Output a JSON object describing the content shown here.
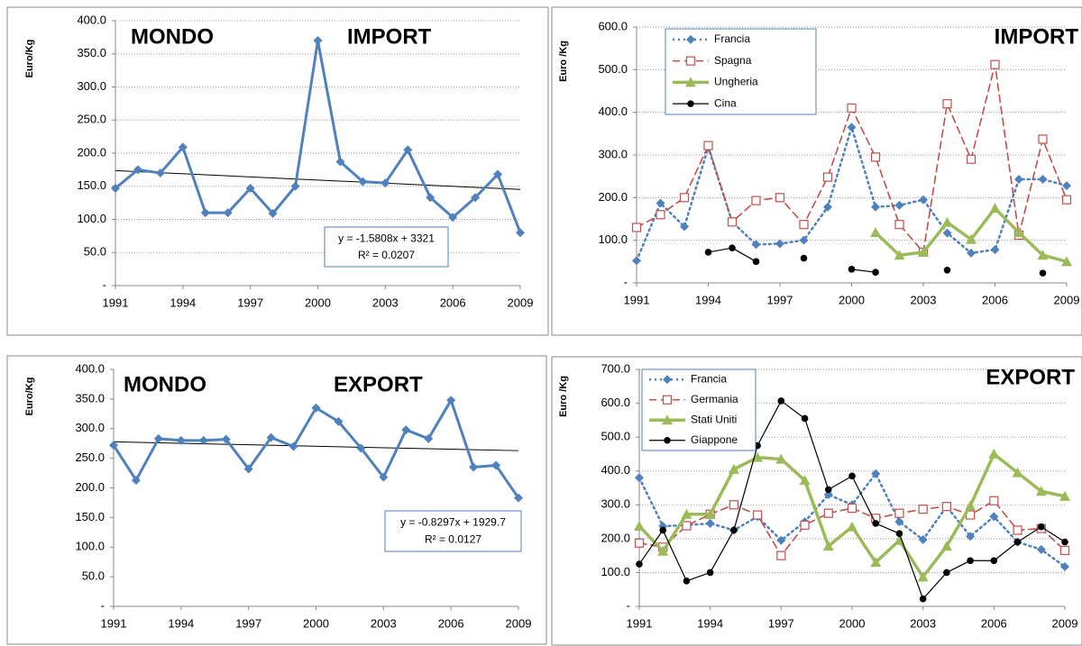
{
  "chart_data": [
    {
      "type": "line",
      "title": "MONDO",
      "subtitle": "IMPORT",
      "y_label": "Euro/Kg",
      "x": [
        1991,
        1992,
        1993,
        1994,
        1995,
        1996,
        1997,
        1998,
        1999,
        2000,
        2001,
        2002,
        2003,
        2004,
        2005,
        2006,
        2007,
        2008,
        2009
      ],
      "values": [
        147,
        175,
        170,
        209,
        110,
        110,
        147,
        109,
        150,
        370,
        187,
        157,
        155,
        205,
        133,
        103,
        133,
        168,
        80
      ],
      "color": "#4f81bd",
      "marker": "diamond",
      "line_style": "solid",
      "xlim": [
        1991,
        2009
      ],
      "xticks": [
        1991,
        1994,
        1997,
        2000,
        2003,
        2006,
        2009
      ],
      "ylim": [
        0,
        400
      ],
      "yticks": [
        {
          "value": 0,
          "label": "-"
        },
        {
          "value": 50,
          "label": "50.0"
        },
        {
          "value": 100,
          "label": "100.0"
        },
        {
          "value": 150,
          "label": "150.0"
        },
        {
          "value": 200,
          "label": "200.0"
        },
        {
          "value": 250,
          "label": "250.0"
        },
        {
          "value": 300,
          "label": "300.0"
        },
        {
          "value": 350,
          "label": "350.0"
        },
        {
          "value": 400,
          "label": "400.0"
        }
      ],
      "grid": true,
      "trendline": {
        "slope": -1.5808,
        "intercept": 3321,
        "equation": "y = -1.5808x + 3321",
        "r2": "R² = 0.0207"
      }
    },
    {
      "type": "line",
      "title": "IMPORT",
      "y_label": "Euro /Kg",
      "x": [
        1991,
        1992,
        1993,
        1994,
        1995,
        1996,
        1997,
        1998,
        1999,
        2000,
        2001,
        2002,
        2003,
        2004,
        2005,
        2006,
        2007,
        2008,
        2009
      ],
      "series": [
        {
          "name": "Francia",
          "color": "#4f81bd",
          "marker": "diamond",
          "line_style": "dotted",
          "values": [
            52,
            187,
            132,
            318,
            143,
            90,
            92,
            100,
            178,
            365,
            178,
            182,
            195,
            117,
            70,
            78,
            243,
            243,
            228
          ]
        },
        {
          "name": "Spagna",
          "color": "#c0504d",
          "marker": "square",
          "line_style": "dashed",
          "values": [
            130,
            160,
            200,
            322,
            143,
            193,
            200,
            137,
            248,
            410,
            295,
            137,
            72,
            420,
            290,
            512,
            112,
            337,
            195
          ]
        },
        {
          "name": "Ungheria",
          "color": "#9bbb59",
          "marker": "triangle",
          "line_style": "thick",
          "values": [
            null,
            null,
            null,
            null,
            null,
            null,
            null,
            null,
            null,
            null,
            118,
            65,
            72,
            142,
            102,
            175,
            118,
            65,
            50
          ]
        },
        {
          "name": "Cina",
          "color": "#000000",
          "marker": "circle",
          "line_style": "solid",
          "values": [
            null,
            null,
            null,
            72,
            82,
            50,
            null,
            58,
            null,
            32,
            25,
            null,
            null,
            30,
            null,
            null,
            null,
            23,
            null
          ]
        }
      ],
      "legend": "upper left",
      "xlim": [
        1991,
        2009
      ],
      "xticks": [
        1991,
        1994,
        1997,
        2000,
        2003,
        2006,
        2009
      ],
      "ylim": [
        0,
        600
      ],
      "yticks": [
        {
          "value": 0,
          "label": "-"
        },
        {
          "value": 100,
          "label": "100.0"
        },
        {
          "value": 200,
          "label": "200.0"
        },
        {
          "value": 300,
          "label": "300.0"
        },
        {
          "value": 400,
          "label": "400.0"
        },
        {
          "value": 500,
          "label": "500.0"
        },
        {
          "value": 600,
          "label": "600.0"
        }
      ],
      "grid": true
    },
    {
      "type": "line",
      "title": "MONDO",
      "subtitle": "EXPORT",
      "y_label": "Euro/Kg",
      "x": [
        1991,
        1992,
        1993,
        1994,
        1995,
        1996,
        1997,
        1998,
        1999,
        2000,
        2001,
        2002,
        2003,
        2004,
        2005,
        2006,
        2007,
        2008,
        2009
      ],
      "values": [
        272,
        213,
        283,
        280,
        280,
        282,
        232,
        285,
        270,
        335,
        312,
        267,
        218,
        298,
        283,
        348,
        235,
        238,
        183
      ],
      "color": "#4f81bd",
      "marker": "diamond",
      "line_style": "solid",
      "xlim": [
        1991,
        2009
      ],
      "xticks": [
        1991,
        1994,
        1997,
        2000,
        2003,
        2006,
        2009
      ],
      "ylim": [
        0,
        400
      ],
      "yticks": [
        {
          "value": 0,
          "label": "-"
        },
        {
          "value": 50,
          "label": "50.0"
        },
        {
          "value": 100,
          "label": "100.0"
        },
        {
          "value": 150,
          "label": "150.0"
        },
        {
          "value": 200,
          "label": "200.0"
        },
        {
          "value": 250,
          "label": "250.0"
        },
        {
          "value": 300,
          "label": "300.0"
        },
        {
          "value": 350,
          "label": "350.0"
        },
        {
          "value": 400,
          "label": "400.0"
        }
      ],
      "grid": false,
      "trendline": {
        "slope": -0.8297,
        "intercept": 1929.7,
        "equation": "y = -0.8297x + 1929.7",
        "r2": "R² = 0.0127"
      }
    },
    {
      "type": "line",
      "title": "EXPORT",
      "y_label": "Euro /Kg",
      "x": [
        1991,
        1992,
        1993,
        1994,
        1995,
        1996,
        1997,
        1998,
        1999,
        2000,
        2001,
        2002,
        2003,
        2004,
        2005,
        2006,
        2007,
        2008,
        2009
      ],
      "series": [
        {
          "name": "Francia",
          "color": "#4f81bd",
          "marker": "diamond",
          "line_style": "dotted",
          "values": [
            380,
            237,
            240,
            245,
            225,
            265,
            195,
            250,
            330,
            300,
            392,
            250,
            197,
            295,
            207,
            265,
            190,
            168,
            117
          ]
        },
        {
          "name": "Germania",
          "color": "#c0504d",
          "marker": "square",
          "line_style": "dashed",
          "values": [
            187,
            175,
            238,
            272,
            300,
            270,
            150,
            240,
            275,
            290,
            260,
            275,
            287,
            295,
            270,
            312,
            225,
            230,
            165
          ]
        },
        {
          "name": "Stati Uniti",
          "color": "#9bbb59",
          "marker": "triangle",
          "line_style": "thick",
          "values": [
            237,
            163,
            272,
            272,
            405,
            440,
            435,
            372,
            178,
            235,
            130,
            195,
            87,
            178,
            297,
            450,
            395,
            340,
            325
          ]
        },
        {
          "name": "Giappone",
          "color": "#000000",
          "marker": "circle",
          "line_style": "solid",
          "values": [
            125,
            225,
            75,
            100,
            225,
            475,
            607,
            555,
            345,
            385,
            245,
            215,
            22,
            100,
            135,
            135,
            190,
            235,
            190
          ]
        }
      ],
      "legend": "upper left",
      "xlim": [
        1991,
        2009
      ],
      "xticks": [
        1991,
        1994,
        1997,
        2000,
        2003,
        2006,
        2009
      ],
      "ylim": [
        0,
        700
      ],
      "yticks": [
        {
          "value": 0,
          "label": "-"
        },
        {
          "value": 100,
          "label": "100.0"
        },
        {
          "value": 200,
          "label": "200.0"
        },
        {
          "value": 300,
          "label": "300.0"
        },
        {
          "value": 400,
          "label": "400.0"
        },
        {
          "value": 500,
          "label": "500.0"
        },
        {
          "value": 600,
          "label": "600.0"
        },
        {
          "value": 700,
          "label": "700.0"
        }
      ],
      "grid": true
    }
  ]
}
